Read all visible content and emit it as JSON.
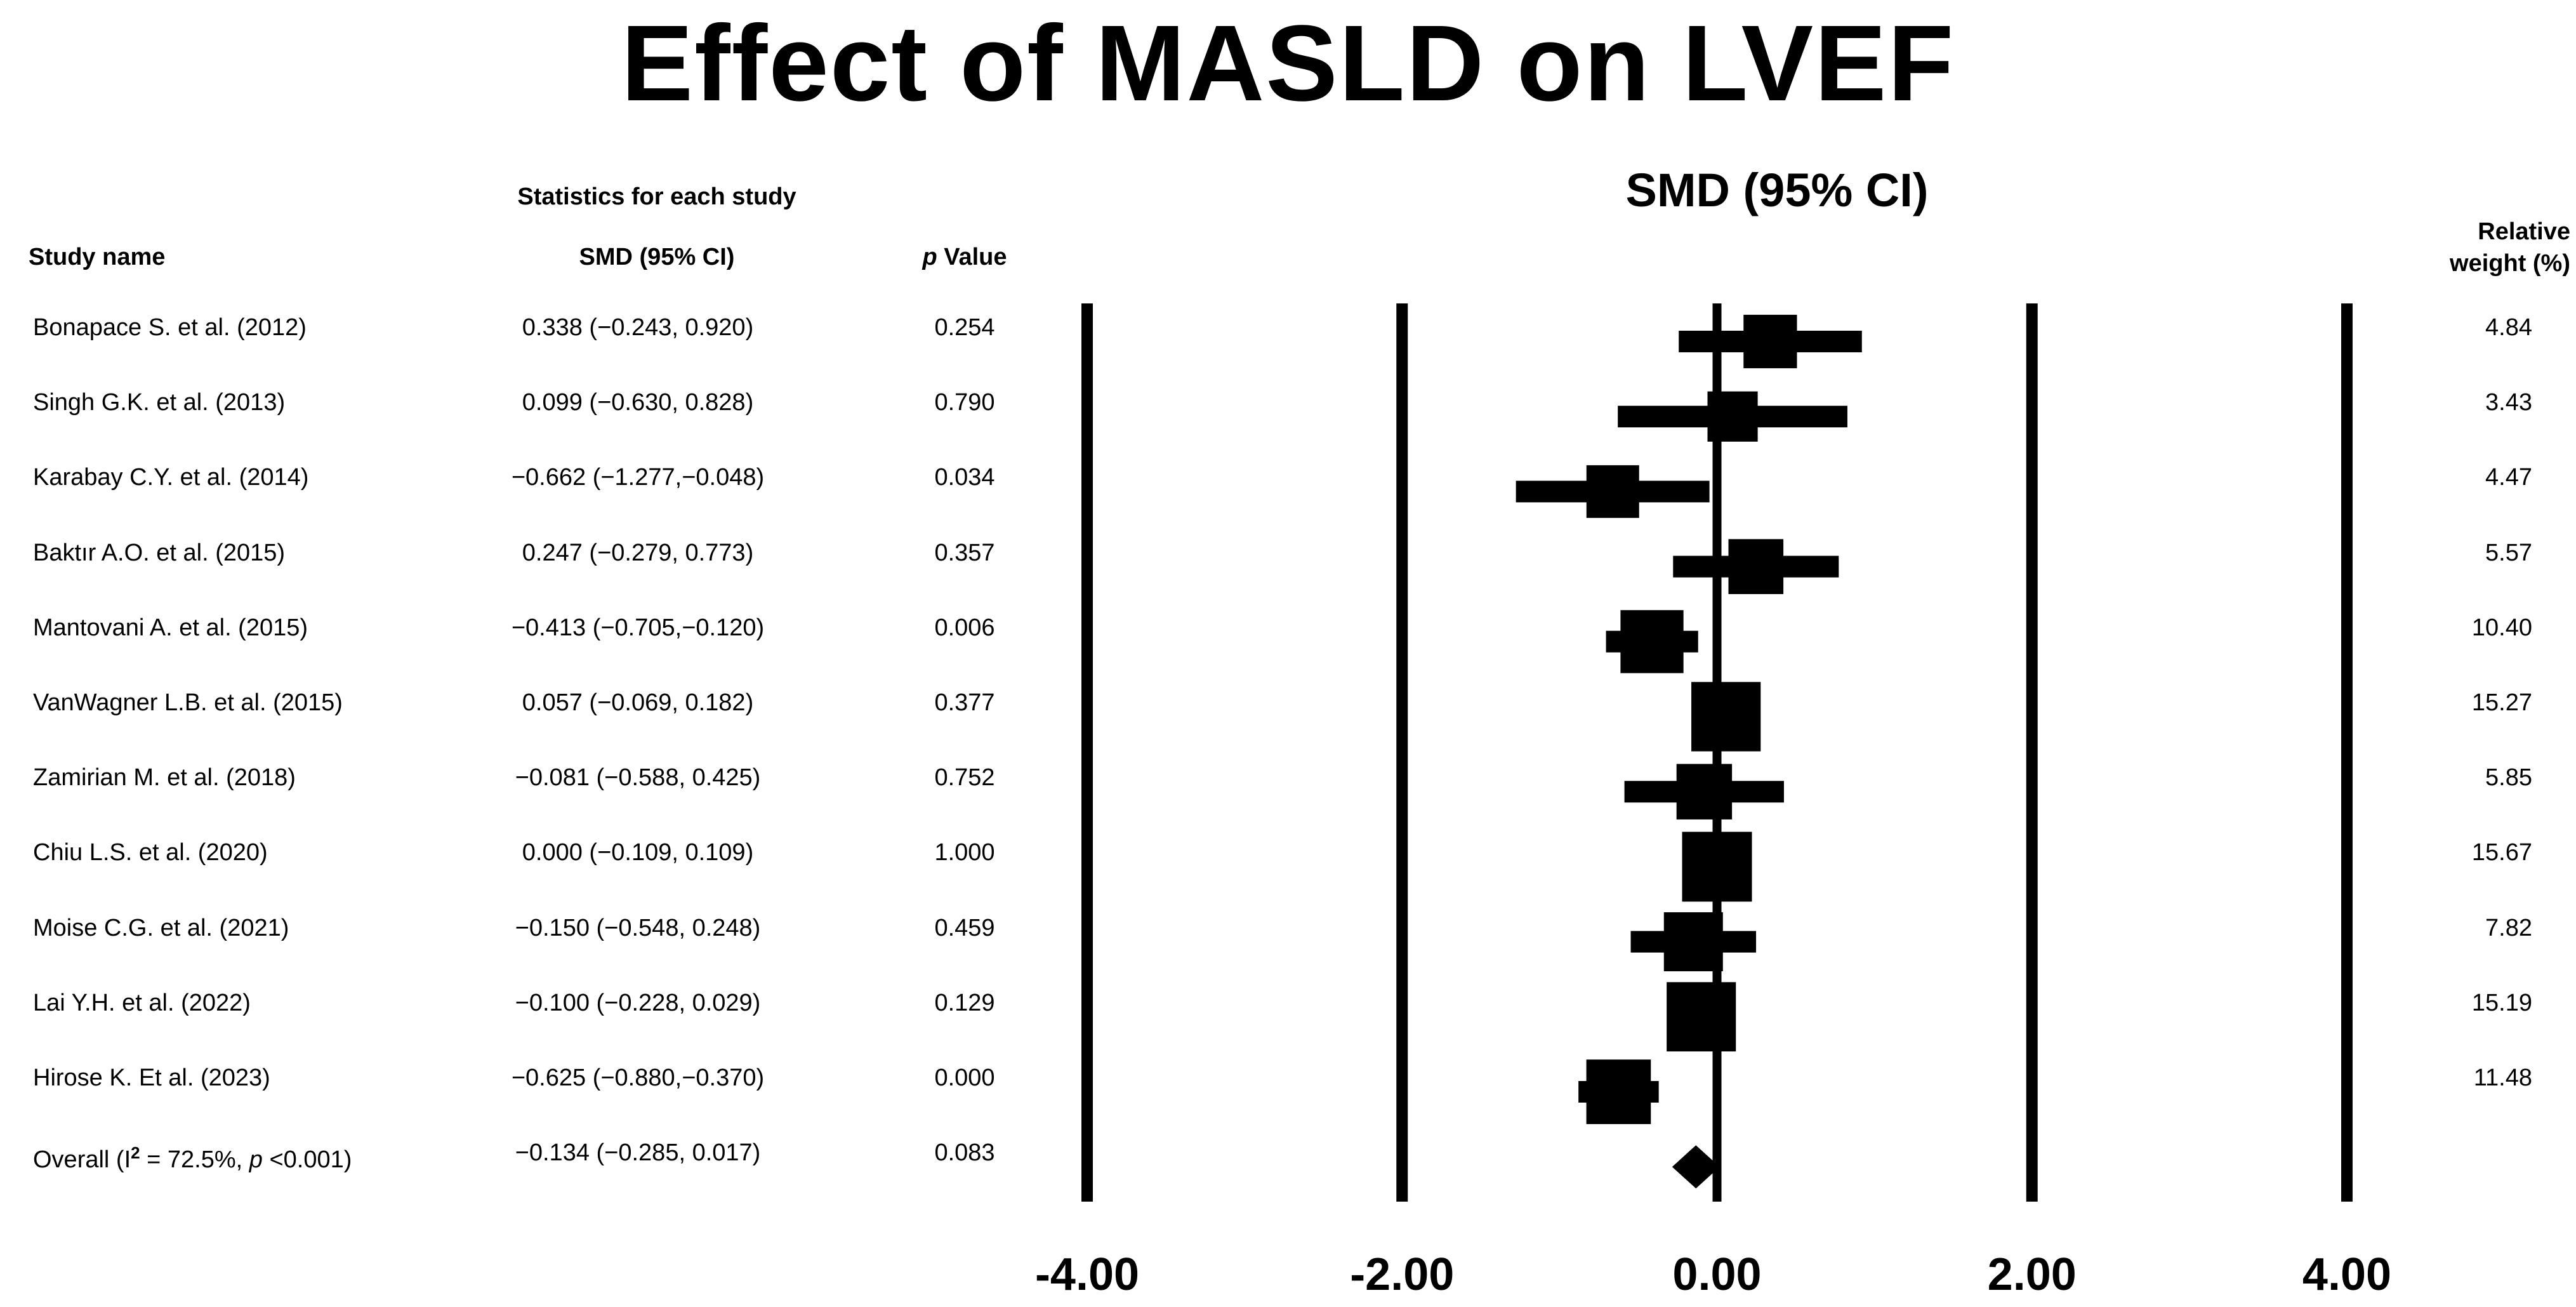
{
  "title": "Effect of MASLD on LVEF",
  "headers": {
    "statistics": "Statistics for each study",
    "study_name": "Study name",
    "smd": "SMD (95% CI)",
    "p_italic": "p",
    "p_rest": " Value",
    "weight_line1": "Relative",
    "weight_line2": "weight (%)"
  },
  "chart_data": {
    "type": "forest",
    "title": "SMD (95% CI)",
    "xlabel": "",
    "xlim": [
      -4,
      4
    ],
    "ticks": [
      -4,
      -2,
      0,
      2,
      4
    ],
    "tick_labels": [
      "-4.00",
      "-2.00",
      "0.00",
      "2.00",
      "4.00"
    ],
    "grid": false,
    "studies": [
      {
        "name": "Bonapace S. et al. (2012)",
        "smd": 0.338,
        "lo": -0.243,
        "hi": 0.92,
        "ci_text": "0.338 (−0.243, 0.920)",
        "p": "0.254",
        "weight": 4.84,
        "weight_text": "4.84"
      },
      {
        "name": "Singh G.K. et al. (2013)",
        "smd": 0.099,
        "lo": -0.63,
        "hi": 0.828,
        "ci_text": "0.099 (−0.630, 0.828)",
        "p": "0.790",
        "weight": 3.43,
        "weight_text": "3.43"
      },
      {
        "name": "Karabay C.Y. et al. (2014)",
        "smd": -0.662,
        "lo": -1.277,
        "hi": -0.048,
        "ci_text": "−0.662 (−1.277,−0.048)",
        "p": "0.034",
        "weight": 4.47,
        "weight_text": "4.47"
      },
      {
        "name": "Baktır A.O. et al. (2015)",
        "smd": 0.247,
        "lo": -0.279,
        "hi": 0.773,
        "ci_text": "0.247 (−0.279, 0.773)",
        "p": "0.357",
        "weight": 5.57,
        "weight_text": "5.57"
      },
      {
        "name": "Mantovani A. et al. (2015)",
        "smd": -0.413,
        "lo": -0.705,
        "hi": -0.12,
        "ci_text": "−0.413 (−0.705,−0.120)",
        "p": "0.006",
        "weight": 10.4,
        "weight_text": "10.40"
      },
      {
        "name": "VanWagner L.B. et al. (2015)",
        "smd": 0.057,
        "lo": -0.069,
        "hi": 0.182,
        "ci_text": "0.057 (−0.069, 0.182)",
        "p": "0.377",
        "weight": 15.27,
        "weight_text": "15.27"
      },
      {
        "name": "Zamirian M. et al. (2018)",
        "smd": -0.081,
        "lo": -0.588,
        "hi": 0.425,
        "ci_text": "−0.081 (−0.588, 0.425)",
        "p": "0.752",
        "weight": 5.85,
        "weight_text": "5.85"
      },
      {
        "name": "Chiu L.S. et al. (2020)",
        "smd": 0.0,
        "lo": -0.109,
        "hi": 0.109,
        "ci_text": "0.000 (−0.109, 0.109)",
        "p": "1.000",
        "weight": 15.67,
        "weight_text": "15.67"
      },
      {
        "name": "Moise C.G. et al. (2021)",
        "smd": -0.15,
        "lo": -0.548,
        "hi": 0.248,
        "ci_text": "−0.150 (−0.548, 0.248)",
        "p": "0.459",
        "weight": 7.82,
        "weight_text": "7.82"
      },
      {
        "name": "Lai Y.H. et al. (2022)",
        "smd": -0.1,
        "lo": -0.228,
        "hi": 0.029,
        "ci_text": "−0.100 (−0.228, 0.029)",
        "p": "0.129",
        "weight": 15.19,
        "weight_text": "15.19"
      },
      {
        "name": "Hirose K. Et al. (2023)",
        "smd": -0.625,
        "lo": -0.88,
        "hi": -0.37,
        "ci_text": "−0.625 (−0.880,−0.370)",
        "p": "0.000",
        "weight": 11.48,
        "weight_text": "11.48"
      }
    ],
    "overall": {
      "name_pre": "Overall (I",
      "name_sup": "2",
      "name_mid": " = 72.5%, ",
      "name_p": "p",
      "name_post": " <0.001)",
      "smd": -0.134,
      "lo": -0.285,
      "hi": 0.017,
      "ci_text": "−0.134 (−0.285, 0.017)",
      "p": "0.083"
    }
  }
}
